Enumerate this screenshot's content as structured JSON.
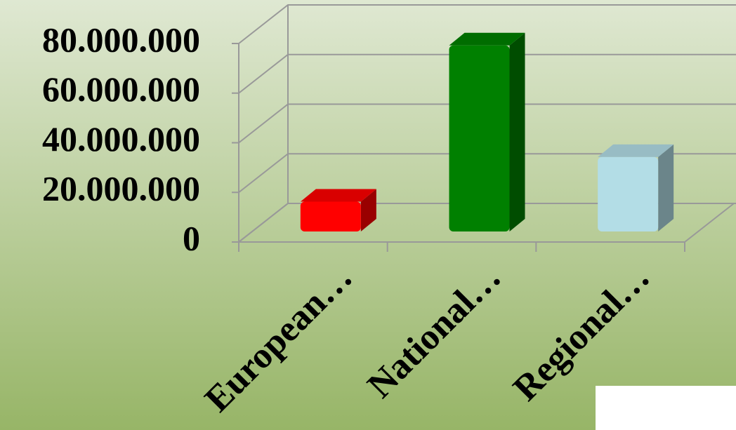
{
  "chart_data": {
    "type": "bar3d",
    "categories": [
      "European…",
      "National…",
      "Regional…"
    ],
    "values": [
      12000000,
      75000000,
      30000000
    ],
    "colors": [
      "#ff0000",
      "#008000",
      "#b3dde6"
    ],
    "ylim": [
      0,
      80000000
    ],
    "yticks": [
      {
        "value": 0,
        "label": "0"
      },
      {
        "value": 20000000,
        "label": "20.000.000"
      },
      {
        "value": 40000000,
        "label": "40.000.000"
      },
      {
        "value": 60000000,
        "label": "60.000.000"
      },
      {
        "value": 80000000,
        "label": "80.000.000"
      }
    ],
    "grid": true
  }
}
